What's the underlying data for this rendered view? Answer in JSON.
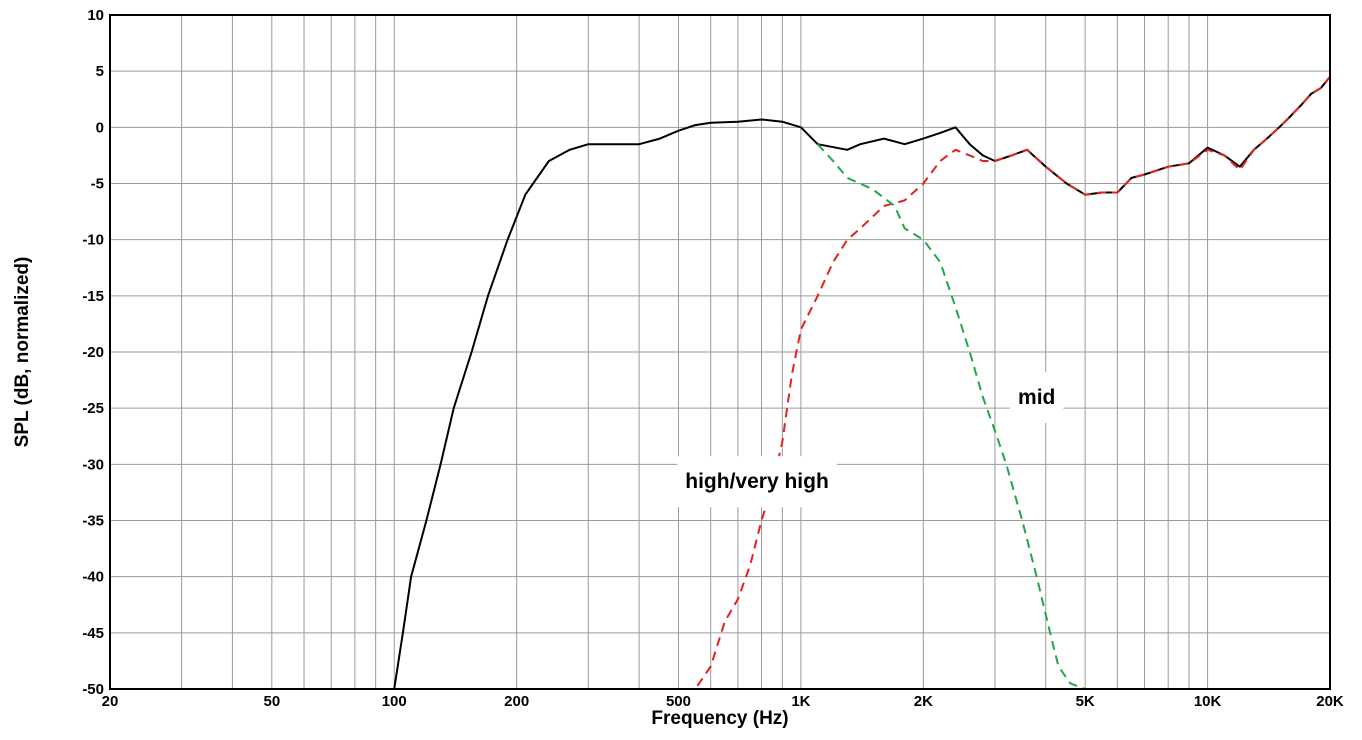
{
  "chart_data": {
    "type": "line",
    "title": "",
    "xlabel": "Frequency (Hz)",
    "ylabel": "SPL (dB, normalized)",
    "x_scale": "log",
    "xlim": [
      20,
      20000
    ],
    "ylim": [
      -50,
      10
    ],
    "grid": true,
    "x_ticks": [
      {
        "value": 20,
        "label": "20"
      },
      {
        "value": 50,
        "label": "50"
      },
      {
        "value": 100,
        "label": "100"
      },
      {
        "value": 200,
        "label": "200"
      },
      {
        "value": 500,
        "label": "500"
      },
      {
        "value": 1000,
        "label": "1K"
      },
      {
        "value": 2000,
        "label": "2K"
      },
      {
        "value": 5000,
        "label": "5K"
      },
      {
        "value": 10000,
        "label": "10K"
      },
      {
        "value": 20000,
        "label": "20K"
      }
    ],
    "y_ticks": [
      {
        "value": 10,
        "label": "10"
      },
      {
        "value": 5,
        "label": "5"
      },
      {
        "value": 0,
        "label": "0"
      },
      {
        "value": -5,
        "label": "-5"
      },
      {
        "value": -10,
        "label": "-10"
      },
      {
        "value": -15,
        "label": "-15"
      },
      {
        "value": -20,
        "label": "-20"
      },
      {
        "value": -25,
        "label": "-25"
      },
      {
        "value": -30,
        "label": "-30"
      },
      {
        "value": -35,
        "label": "-35"
      },
      {
        "value": -40,
        "label": "-40"
      },
      {
        "value": -45,
        "label": "-45"
      },
      {
        "value": -50,
        "label": "-50"
      }
    ],
    "series": [
      {
        "style": "solid",
        "color": "#000000",
        "points": [
          [
            100,
            -50
          ],
          [
            105,
            -45
          ],
          [
            110,
            -40
          ],
          [
            120,
            -35
          ],
          [
            130,
            -30
          ],
          [
            140,
            -25
          ],
          [
            155,
            -20
          ],
          [
            170,
            -15
          ],
          [
            190,
            -10
          ],
          [
            210,
            -6
          ],
          [
            240,
            -3
          ],
          [
            270,
            -2
          ],
          [
            300,
            -1.5
          ],
          [
            400,
            -1.5
          ],
          [
            450,
            -1
          ],
          [
            500,
            -0.3
          ],
          [
            550,
            0.2
          ],
          [
            600,
            0.4
          ],
          [
            700,
            0.5
          ],
          [
            800,
            0.7
          ],
          [
            900,
            0.5
          ],
          [
            1000,
            0
          ],
          [
            1100,
            -1.5
          ],
          [
            1300,
            -2
          ],
          [
            1400,
            -1.5
          ],
          [
            1600,
            -1
          ],
          [
            1800,
            -1.5
          ],
          [
            2000,
            -1
          ],
          [
            2200,
            -0.5
          ],
          [
            2400,
            0
          ],
          [
            2600,
            -1.5
          ],
          [
            2800,
            -2.5
          ],
          [
            3000,
            -3
          ],
          [
            3300,
            -2.5
          ],
          [
            3600,
            -2
          ],
          [
            4000,
            -3.5
          ],
          [
            4500,
            -5
          ],
          [
            5000,
            -6
          ],
          [
            5500,
            -5.8
          ],
          [
            6000,
            -5.8
          ],
          [
            6500,
            -4.5
          ],
          [
            7000,
            -4.2
          ],
          [
            8000,
            -3.5
          ],
          [
            9000,
            -3.2
          ],
          [
            10000,
            -1.8
          ],
          [
            11000,
            -2.5
          ],
          [
            12000,
            -3.5
          ],
          [
            13000,
            -2
          ],
          [
            14000,
            -1
          ],
          [
            15000,
            0
          ],
          [
            16000,
            1
          ],
          [
            17000,
            2
          ],
          [
            18000,
            3
          ],
          [
            19000,
            3.5
          ],
          [
            20000,
            4.5
          ]
        ]
      },
      {
        "style": "dashed",
        "color": "#e2231a",
        "points": [
          [
            400,
            -50
          ],
          [
            550,
            -50
          ],
          [
            600,
            -48
          ],
          [
            650,
            -44
          ],
          [
            700,
            -42
          ],
          [
            750,
            -39
          ],
          [
            800,
            -35
          ],
          [
            850,
            -32
          ],
          [
            900,
            -28
          ],
          [
            950,
            -22
          ],
          [
            1000,
            -18
          ],
          [
            1100,
            -15
          ],
          [
            1200,
            -12
          ],
          [
            1300,
            -10
          ],
          [
            1400,
            -9
          ],
          [
            1600,
            -7
          ],
          [
            1800,
            -6.5
          ],
          [
            2000,
            -5
          ],
          [
            2200,
            -3
          ],
          [
            2400,
            -2
          ],
          [
            2600,
            -2.5
          ],
          [
            2800,
            -3
          ],
          [
            3000,
            -3
          ],
          [
            3300,
            -2.5
          ],
          [
            3600,
            -2
          ],
          [
            4000,
            -3.5
          ],
          [
            4500,
            -5
          ],
          [
            5000,
            -6
          ],
          [
            5500,
            -5.8
          ],
          [
            6000,
            -5.8
          ],
          [
            6500,
            -4.5
          ],
          [
            7000,
            -4.2
          ],
          [
            8000,
            -3.5
          ],
          [
            9000,
            -3.2
          ],
          [
            10000,
            -2
          ],
          [
            11000,
            -2.5
          ],
          [
            12000,
            -3.8
          ],
          [
            13000,
            -2
          ],
          [
            14000,
            -1
          ],
          [
            15000,
            0
          ],
          [
            16000,
            1
          ],
          [
            17000,
            2
          ],
          [
            18000,
            3
          ],
          [
            19000,
            3.5
          ],
          [
            20000,
            4.5
          ]
        ]
      },
      {
        "style": "dashed",
        "color": "#1fa84a",
        "points": [
          [
            1100,
            -1.5
          ],
          [
            1200,
            -3
          ],
          [
            1300,
            -4.5
          ],
          [
            1500,
            -5.5
          ],
          [
            1700,
            -7
          ],
          [
            1800,
            -9
          ],
          [
            2000,
            -10
          ],
          [
            2200,
            -12
          ],
          [
            2400,
            -16
          ],
          [
            2600,
            -20
          ],
          [
            2800,
            -24
          ],
          [
            3000,
            -27
          ],
          [
            3200,
            -30
          ],
          [
            3500,
            -35
          ],
          [
            3800,
            -40
          ],
          [
            4100,
            -45
          ],
          [
            4300,
            -48
          ],
          [
            4600,
            -49.5
          ],
          [
            5000,
            -50
          ],
          [
            20000,
            -50
          ]
        ]
      }
    ],
    "annotations": [
      {
        "text": "high/very high",
        "x": 780,
        "y": -31.5
      },
      {
        "text": "mid",
        "x": 3800,
        "y": -24
      }
    ]
  }
}
